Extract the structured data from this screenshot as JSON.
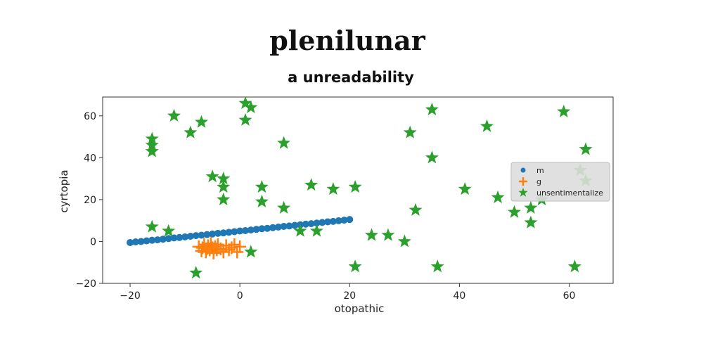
{
  "chart_data": {
    "type": "scatter",
    "title": "plenilunar",
    "subtitle": "a unreadability",
    "xlabel": "otopathic",
    "ylabel": "cyrtopia",
    "xlim": [
      -25,
      68
    ],
    "ylim": [
      -20,
      69
    ],
    "xticks": [
      -20,
      0,
      20,
      40,
      60
    ],
    "yticks": [
      -20,
      0,
      20,
      40,
      60
    ],
    "xtick_labels": [
      "−20",
      "0",
      "20",
      "40",
      "60"
    ],
    "ytick_labels": [
      "−20",
      "0",
      "20",
      "40",
      "60"
    ],
    "grid": false,
    "legend_position": "center-right",
    "series": [
      {
        "name": "m",
        "marker": "circle",
        "color": "#1f77b4",
        "points": [
          [
            -20,
            -0.5
          ],
          [
            -19,
            -0.2
          ],
          [
            -18,
            0
          ],
          [
            -17,
            0.3
          ],
          [
            -16,
            0.6
          ],
          [
            -15,
            0.8
          ],
          [
            -14,
            1.1
          ],
          [
            -13,
            1.4
          ],
          [
            -12,
            1.7
          ],
          [
            -11,
            1.9
          ],
          [
            -10,
            2.2
          ],
          [
            -9,
            2.5
          ],
          [
            -8,
            2.8
          ],
          [
            -7,
            3
          ],
          [
            -6,
            3.3
          ],
          [
            -5,
            3.6
          ],
          [
            -4,
            3.9
          ],
          [
            -3,
            4.1
          ],
          [
            -2,
            4.4
          ],
          [
            -1,
            4.7
          ],
          [
            0,
            5
          ],
          [
            1,
            5.2
          ],
          [
            2,
            5.5
          ],
          [
            3,
            5.8
          ],
          [
            4,
            6.1
          ],
          [
            5,
            6.3
          ],
          [
            6,
            6.6
          ],
          [
            7,
            6.9
          ],
          [
            8,
            7.2
          ],
          [
            9,
            7.4
          ],
          [
            10,
            7.7
          ],
          [
            11,
            8
          ],
          [
            12,
            8.3
          ],
          [
            13,
            8.5
          ],
          [
            14,
            8.8
          ],
          [
            15,
            9.1
          ],
          [
            16,
            9.4
          ],
          [
            17,
            9.6
          ],
          [
            18,
            9.9
          ],
          [
            19,
            10.2
          ],
          [
            20,
            10.5
          ]
        ]
      },
      {
        "name": "g",
        "marker": "plus",
        "color": "#ff7f0e",
        "points": [
          [
            -7.5,
            -2.5
          ],
          [
            -7,
            -4.5
          ],
          [
            -6.8,
            -3
          ],
          [
            -6.5,
            -1.5
          ],
          [
            -6.2,
            -5
          ],
          [
            -6,
            -3.5
          ],
          [
            -5.8,
            -2
          ],
          [
            -5.5,
            -4
          ],
          [
            -5.3,
            -1
          ],
          [
            -5,
            -3
          ],
          [
            -4.8,
            -5.5
          ],
          [
            -4.5,
            -2.5
          ],
          [
            -4.2,
            -4
          ],
          [
            -4,
            -1.5
          ],
          [
            -3.5,
            -3.5
          ],
          [
            -3,
            -5
          ],
          [
            -2.5,
            -2
          ],
          [
            -2,
            -4
          ],
          [
            -1.5,
            -3
          ],
          [
            -1,
            -1.5
          ],
          [
            -0.5,
            -5
          ],
          [
            0,
            -2.5
          ]
        ]
      },
      {
        "name": "unsentimentalize",
        "marker": "star",
        "color": "#2ca02c",
        "points": [
          [
            -16,
            49
          ],
          [
            -16,
            46
          ],
          [
            -16,
            43
          ],
          [
            -12,
            60
          ],
          [
            -9,
            52
          ],
          [
            -7,
            57
          ],
          [
            -16,
            7
          ],
          [
            -13,
            5
          ],
          [
            1,
            58
          ],
          [
            1,
            66
          ],
          [
            2,
            64
          ],
          [
            8,
            47
          ],
          [
            -5,
            31
          ],
          [
            -3,
            30
          ],
          [
            -3,
            26
          ],
          [
            -3,
            20
          ],
          [
            4,
            26
          ],
          [
            4,
            19
          ],
          [
            8,
            16
          ],
          [
            13,
            27
          ],
          [
            17,
            25
          ],
          [
            21,
            26
          ],
          [
            11,
            5
          ],
          [
            14,
            5
          ],
          [
            2,
            -5
          ],
          [
            -8,
            -15
          ],
          [
            21,
            -12
          ],
          [
            24,
            3
          ],
          [
            27,
            3
          ],
          [
            30,
            0
          ],
          [
            31,
            52
          ],
          [
            32,
            15
          ],
          [
            35,
            63
          ],
          [
            35,
            40
          ],
          [
            36,
            -12
          ],
          [
            41,
            25
          ],
          [
            45,
            55
          ],
          [
            47,
            21
          ],
          [
            50,
            14
          ],
          [
            53,
            16
          ],
          [
            53,
            9
          ],
          [
            59,
            62
          ],
          [
            63,
            44
          ],
          [
            62,
            34
          ],
          [
            63,
            29
          ],
          [
            61,
            -12
          ],
          [
            55,
            20
          ]
        ]
      }
    ]
  }
}
